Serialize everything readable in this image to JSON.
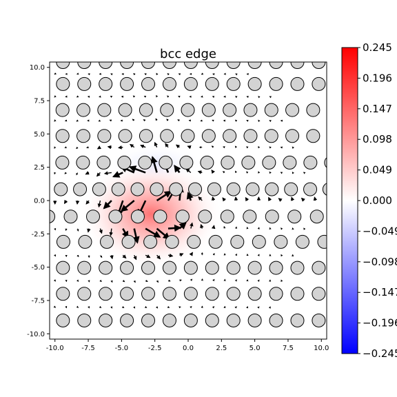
{
  "chart_data": {
    "type": "vector-field",
    "title": "bcc edge",
    "xlabel": "",
    "ylabel": "",
    "xlim": [
      -10.4,
      10.4
    ],
    "ylim": [
      -10.4,
      10.4
    ],
    "x_ticks": [
      "-10.0",
      "-7.5",
      "-5.0",
      "-2.5",
      "0.0",
      "2.5",
      "5.0",
      "7.5",
      "10.0"
    ],
    "y_ticks": [
      "10.0",
      "7.5",
      "5.0",
      "2.5",
      "0.0",
      "-2.5",
      "-5.0",
      "-7.5",
      "-10.0"
    ],
    "x_tick_values": [
      -10,
      -7.5,
      -5,
      -2.5,
      0,
      2.5,
      5,
      7.5,
      10
    ],
    "y_tick_values": [
      10,
      7.5,
      5,
      2.5,
      0,
      -2.5,
      -5,
      -7.5,
      -10
    ],
    "colorbar": {
      "colormap": "bwr",
      "min": -0.245,
      "max": 0.245,
      "tick_values": [
        0.245,
        0.196,
        0.147,
        0.098,
        0.049,
        0.0,
        -0.049,
        -0.098,
        -0.147,
        -0.196,
        -0.245
      ],
      "tick_labels": [
        "0.245",
        "0.196",
        "0.147",
        "0.098",
        "0.049",
        "0.000",
        "−0.049",
        "−0.098",
        "−0.147",
        "−0.196",
        "−0.245"
      ],
      "colors": {
        "min": "#0000ff",
        "mid": "#ffffff",
        "max": "#ff0000"
      }
    },
    "atom_rows": [
      {
        "y": 10.4,
        "x_start": -10.0,
        "spacing": 1.0
      },
      {
        "y": 8.75,
        "x_start": -10.0,
        "spacing": 1.0
      },
      {
        "y": 6.8,
        "x_start": -10.0,
        "spacing": 0.98
      },
      {
        "y": 4.85,
        "x_start": -10.0,
        "spacing": 0.98
      },
      {
        "y": 2.85,
        "x_start": -10.0,
        "spacing": 0.97
      },
      {
        "y": 0.85,
        "x_start": -10.0,
        "spacing": 0.9
      },
      {
        "y": -1.2,
        "x_start": -9.5,
        "spacing": 1.05
      },
      {
        "y": -3.1,
        "x_start": -10.0,
        "spacing": 1.02
      },
      {
        "y": -5.05,
        "x_start": -10.0,
        "spacing": 1.0
      },
      {
        "y": -7.0,
        "x_start": -10.0,
        "spacing": 1.0
      },
      {
        "y": -9.0,
        "x_start": -10.0,
        "spacing": 1.0
      }
    ],
    "atom_style": {
      "fill": "#d3d3d3",
      "edge": "#000000"
    },
    "stress_peak": {
      "x": -2.8,
      "y": -1.0,
      "value": 0.245
    },
    "displacement_core": {
      "x": -3.0,
      "y": 0.0
    }
  }
}
